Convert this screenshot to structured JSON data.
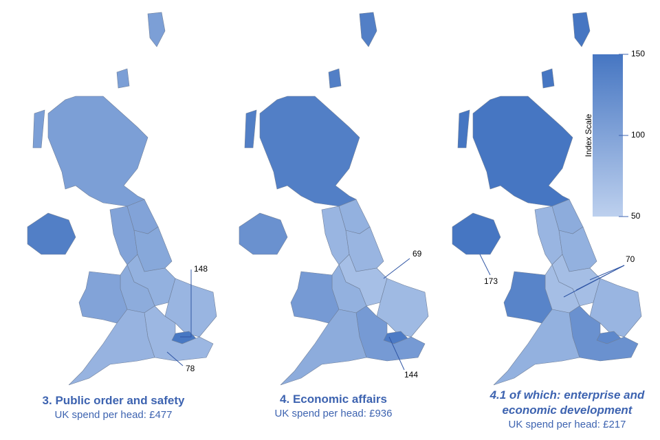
{
  "legend": {
    "title": "Index Scale",
    "ylim": [
      50,
      150
    ],
    "yticks": [
      50,
      100,
      150
    ],
    "colors": [
      "#bdd0ee",
      "#4676c2"
    ]
  },
  "maps": [
    {
      "title": "3. Public order and safety",
      "subtitle": "UK spend per head: £477",
      "values": [
        105,
        140,
        100,
        100,
        95,
        85,
        90,
        100,
        80,
        148,
        78,
        82
      ]
    },
    {
      "title": "4. Economic affairs",
      "subtitle": "UK spend per head: £936",
      "values": [
        140,
        120,
        85,
        80,
        80,
        69,
        85,
        110,
        75,
        144,
        110,
        90
      ]
    },
    {
      "title": "4.1 of which: enterprise and economic development",
      "subtitle": "UK spend per head: £217",
      "values": [
        150,
        173,
        90,
        80,
        85,
        70,
        70,
        135,
        80,
        130,
        120,
        85
      ]
    }
  ]
}
